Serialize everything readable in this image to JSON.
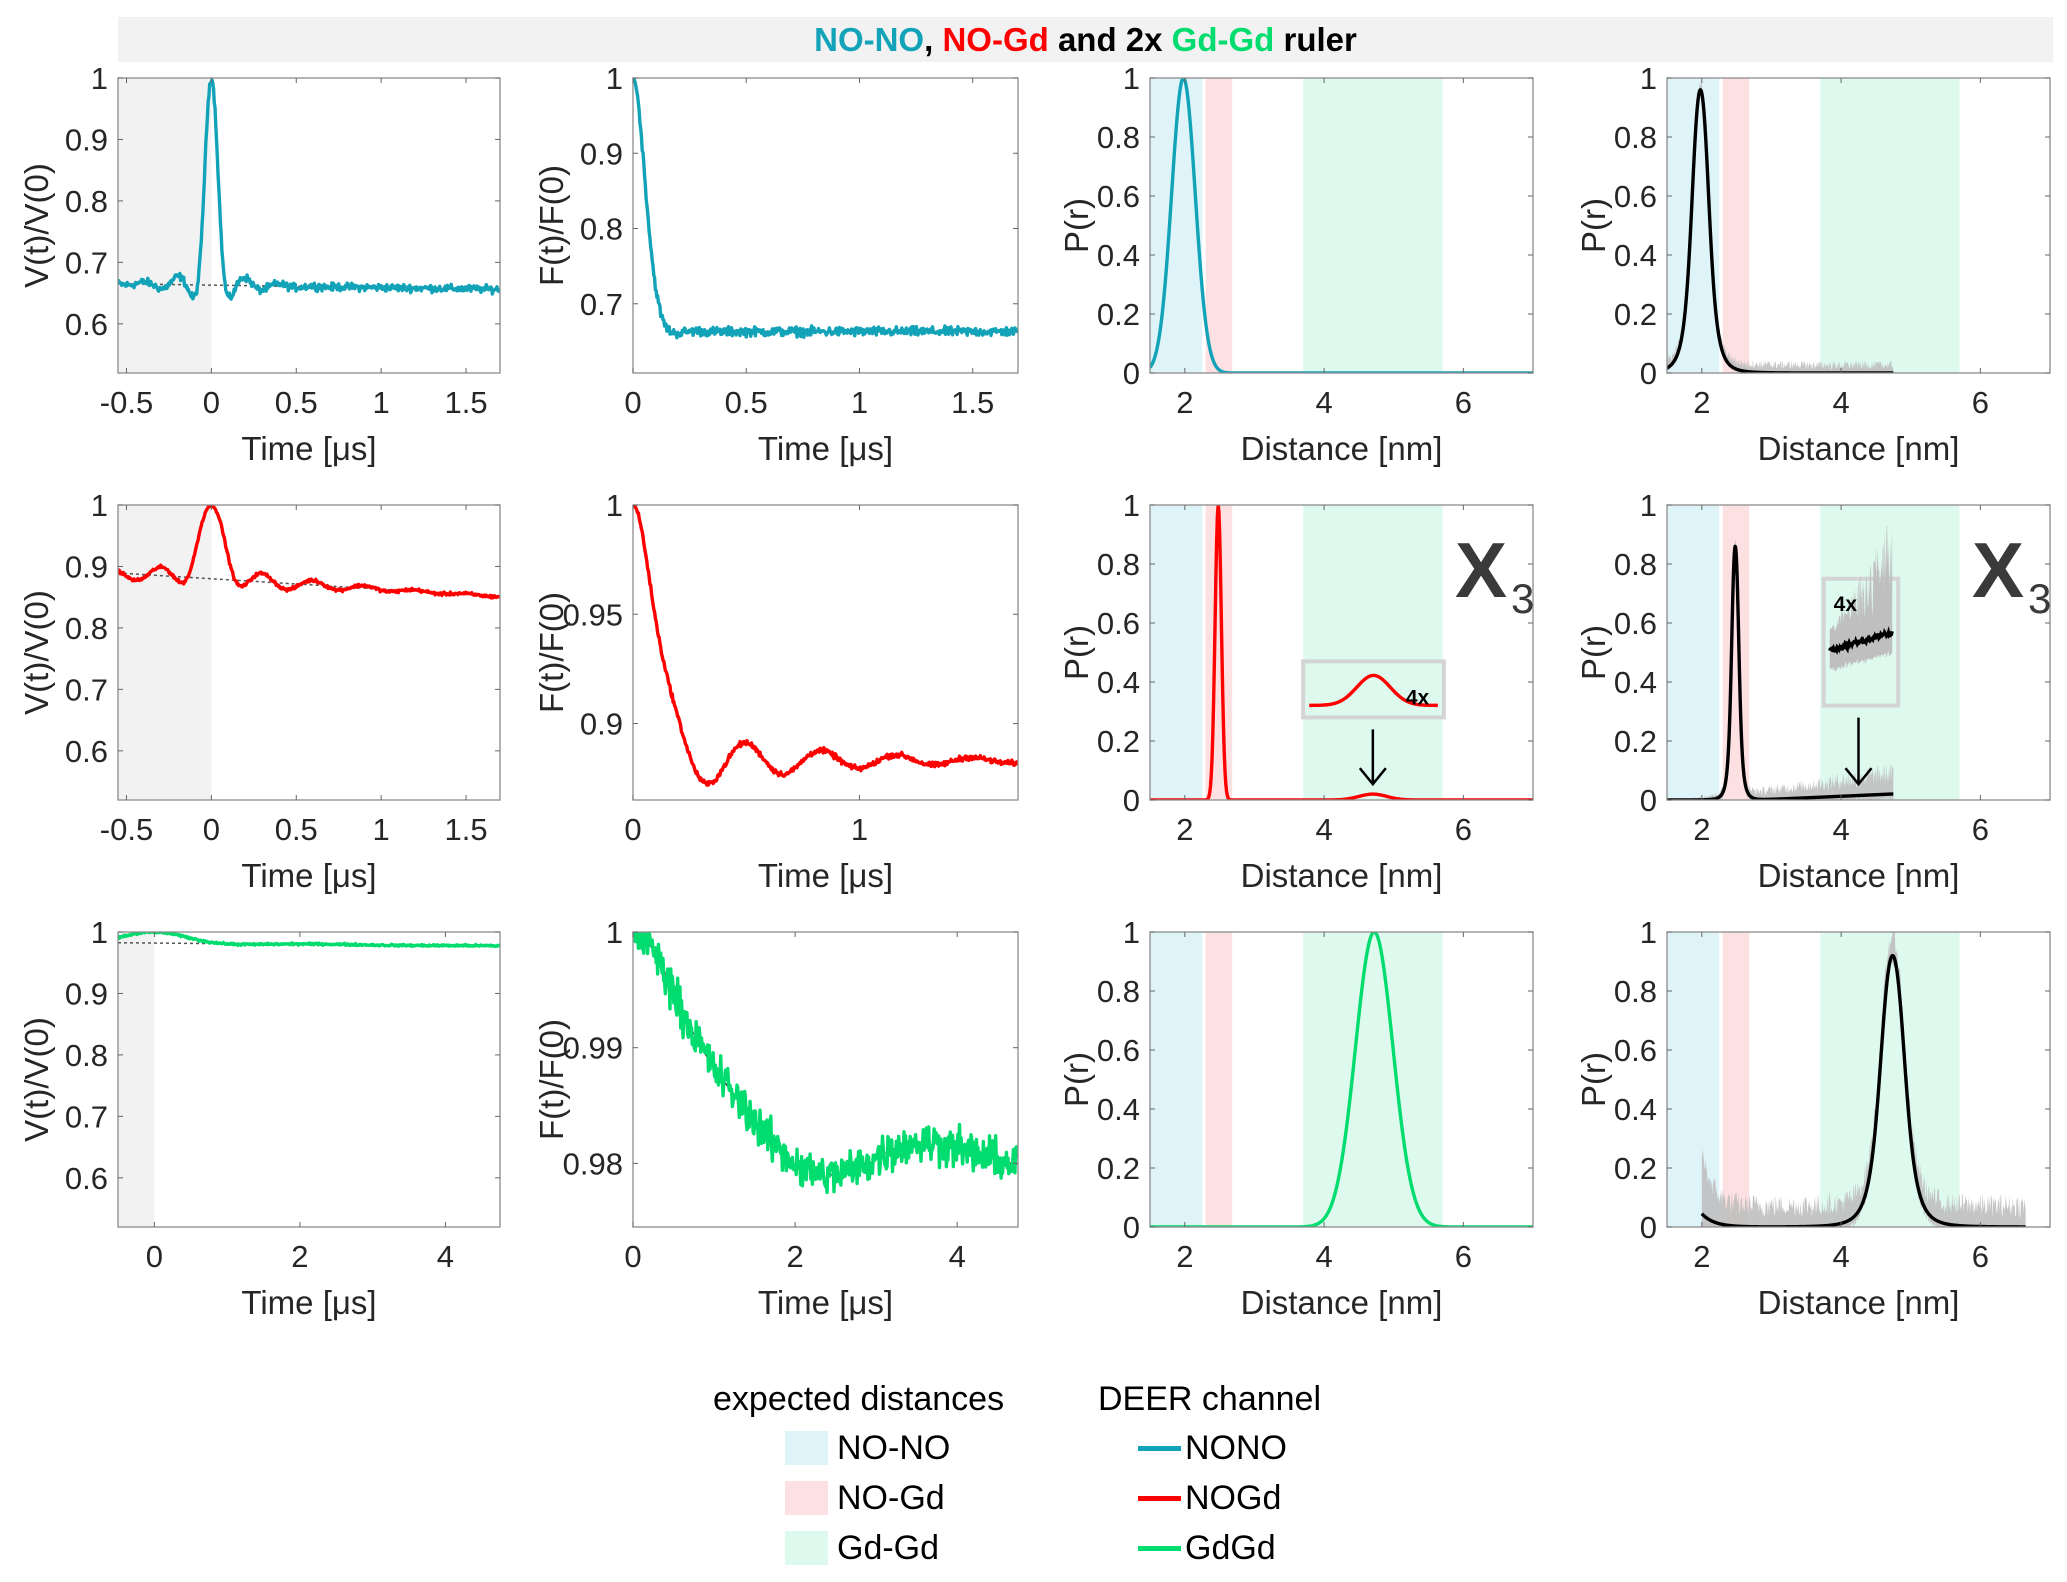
{
  "title": {
    "parts": [
      {
        "text": "NO-NO",
        "color": "#12a3b8"
      },
      {
        "text": ", ",
        "color": "#000000"
      },
      {
        "text": "NO-Gd",
        "color": "#ff0000"
      },
      {
        "text": " and 2x ",
        "color": "#000000"
      },
      {
        "text": "Gd-Gd",
        "color": "#00dc6e"
      },
      {
        "text": " ruler",
        "color": "#000000"
      }
    ]
  },
  "colors": {
    "NONO": "#12a3b8",
    "NOGd": "#ff0000",
    "GdGd": "#00dc6e",
    "band_NONO": "#def4f8",
    "band_NOGd": "#fde0e1",
    "band_GdGd": "#defaee",
    "uncertainty": "#bfbfbf"
  },
  "legend": {
    "expected_title": "expected distances",
    "expected_items": [
      {
        "label": "NO-NO",
        "color_key": "band_NONO"
      },
      {
        "label": "NO-Gd",
        "color_key": "band_NOGd"
      },
      {
        "label": "Gd-Gd",
        "color_key": "band_GdGd"
      }
    ],
    "channel_title": "DEER channel",
    "channel_items": [
      {
        "label": "NONO",
        "color_key": "NONO"
      },
      {
        "label": "NOGd",
        "color_key": "NOGd"
      },
      {
        "label": "GdGd",
        "color_key": "GdGd"
      }
    ]
  },
  "chart_data": [
    {
      "id": "r1c1",
      "type": "line",
      "row": 0,
      "col": 0,
      "xlabel": "Time [μs]",
      "ylabel": "V(t)/V(0)",
      "xlim": [
        -0.55,
        1.7
      ],
      "ylim": [
        0.52,
        1.0
      ],
      "xticks": [
        -0.5,
        0,
        0.5,
        1,
        1.5
      ],
      "xtick_labels": [
        "-0.5",
        "0",
        "0.5",
        "1",
        "1.5"
      ],
      "yticks": [
        0.6,
        0.7,
        0.8,
        0.9,
        1
      ],
      "ytick_labels": [
        "0.6",
        "0.7",
        "0.8",
        "0.9",
        "1"
      ],
      "shade_x": [
        -0.55,
        0
      ],
      "series": [
        {
          "name": "NONO",
          "color_key": "NONO",
          "kind": "vtrace",
          "baseline": 0.663,
          "baseline_slope": -0.004,
          "peak": 1.0,
          "peak_width": 0.035,
          "osc_amp": 0.05,
          "osc_period": 0.2,
          "osc_decay": 0.15,
          "noise": 0.006
        }
      ],
      "background": {
        "start": 0.663,
        "slope": -0.004
      }
    },
    {
      "id": "r1c2",
      "type": "line",
      "row": 0,
      "col": 1,
      "xlabel": "Time [μs]",
      "ylabel": "F(t)/F(0)",
      "xlim": [
        0,
        1.7
      ],
      "ylim": [
        0.608,
        1.0
      ],
      "xticks": [
        0,
        0.5,
        1,
        1.5
      ],
      "xtick_labels": [
        "0",
        "0.5",
        "1",
        "1.5"
      ],
      "yticks": [
        0.7,
        0.8,
        0.9,
        1
      ],
      "ytick_labels": [
        "0.7",
        "0.8",
        "0.9",
        "1"
      ],
      "series": [
        {
          "name": "NONO",
          "color_key": "NONO",
          "kind": "ftrace",
          "plateau": 0.663,
          "depth": 0.337,
          "freq_period": 0.175,
          "decay": 0.08,
          "noise": 0.006
        }
      ]
    },
    {
      "id": "r1c3",
      "type": "line",
      "row": 0,
      "col": 2,
      "xlabel": "Distance [nm]",
      "ylabel": "P(r)",
      "xlim": [
        1.5,
        7.0
      ],
      "ylim": [
        0,
        1
      ],
      "xticks": [
        2,
        4,
        6
      ],
      "xtick_labels": [
        "2",
        "4",
        "6"
      ],
      "yticks": [
        0,
        0.2,
        0.4,
        0.6,
        0.8,
        1
      ],
      "ytick_labels": [
        "0",
        "0.2",
        "0.4",
        "0.6",
        "0.8",
        "1"
      ],
      "bands": [
        {
          "range": [
            1.5,
            2.25
          ],
          "color_key": "band_NONO"
        },
        {
          "range": [
            2.3,
            2.68
          ],
          "color_key": "band_NOGd"
        },
        {
          "range": [
            3.7,
            5.7
          ],
          "color_key": "band_GdGd"
        }
      ],
      "series": [
        {
          "name": "NONO",
          "color_key": "NONO",
          "kind": "gauss",
          "peaks": [
            {
              "mu": 1.98,
              "sigma": 0.17,
              "amp": 1.0
            }
          ],
          "xrange": [
            1.5,
            7.0
          ]
        }
      ]
    },
    {
      "id": "r1c4",
      "type": "line",
      "row": 0,
      "col": 3,
      "xlabel": "Distance [nm]",
      "ylabel": "P(r)",
      "xlim": [
        1.5,
        7.0
      ],
      "ylim": [
        0,
        1
      ],
      "xticks": [
        2,
        4,
        6
      ],
      "xtick_labels": [
        "2",
        "4",
        "6"
      ],
      "yticks": [
        0,
        0.2,
        0.4,
        0.6,
        0.8,
        1
      ],
      "ytick_labels": [
        "0",
        "0.2",
        "0.4",
        "0.6",
        "0.8",
        "1"
      ],
      "bands": [
        {
          "range": [
            1.5,
            2.25
          ],
          "color_key": "band_NONO"
        },
        {
          "range": [
            2.3,
            2.68
          ],
          "color_key": "band_NOGd"
        },
        {
          "range": [
            3.7,
            5.7
          ],
          "color_key": "band_GdGd"
        }
      ],
      "series": [
        {
          "name": "fit",
          "color": "#000000",
          "kind": "lorentzish",
          "peaks": [
            {
              "mu": 1.98,
              "sigma": 0.14,
              "amp": 0.96
            }
          ],
          "xrange": [
            1.42,
            4.75
          ],
          "uncertainty": 0.03
        }
      ]
    },
    {
      "id": "r2c1",
      "type": "line",
      "row": 1,
      "col": 0,
      "xlabel": "Time [μs]",
      "ylabel": "V(t)/V(0)",
      "xlim": [
        -0.55,
        1.7
      ],
      "ylim": [
        0.52,
        1.0
      ],
      "xticks": [
        -0.5,
        0,
        0.5,
        1,
        1.5
      ],
      "xtick_labels": [
        "-0.5",
        "0",
        "0.5",
        "1",
        "1.5"
      ],
      "yticks": [
        0.6,
        0.7,
        0.8,
        0.9,
        1
      ],
      "ytick_labels": [
        "0.6",
        "0.7",
        "0.8",
        "0.9",
        "1"
      ],
      "shade_x": [
        -0.55,
        0
      ],
      "series": [
        {
          "name": "NOGd",
          "color_key": "NOGd",
          "kind": "vtrace",
          "baseline": 0.88,
          "baseline_slope": -0.017,
          "peak": 1.0,
          "peak_width": 0.07,
          "osc_amp": 0.025,
          "osc_period": 0.3,
          "osc_decay": 0.5,
          "noise": 0.0025
        }
      ],
      "background": {
        "start": 0.88,
        "slope": -0.017
      }
    },
    {
      "id": "r2c2",
      "type": "line",
      "row": 1,
      "col": 1,
      "xlabel": "Time [μs]",
      "ylabel": "F(t)/F(0)",
      "xlim": [
        0,
        1.7
      ],
      "ylim": [
        0.865,
        1.0
      ],
      "xticks": [
        0,
        1
      ],
      "xtick_labels": [
        "0",
        "1"
      ],
      "yticks": [
        0.9,
        0.95,
        1
      ],
      "ytick_labels": [
        "0.9",
        "0.95",
        "1"
      ],
      "series": [
        {
          "name": "NOGd",
          "color_key": "NOGd",
          "kind": "ftrace",
          "plateau": 0.883,
          "depth": 0.117,
          "freq_period": 0.3,
          "decay": 0.6,
          "noise": 0.0012,
          "osc_scale": 0.16
        }
      ]
    },
    {
      "id": "r2c3",
      "type": "line",
      "row": 1,
      "col": 2,
      "xlabel": "Distance [nm]",
      "ylabel": "P(r)",
      "xlim": [
        1.5,
        7.0
      ],
      "ylim": [
        0,
        1
      ],
      "xticks": [
        2,
        4,
        6
      ],
      "xtick_labels": [
        "2",
        "4",
        "6"
      ],
      "yticks": [
        0,
        0.2,
        0.4,
        0.6,
        0.8,
        1
      ],
      "ytick_labels": [
        "0",
        "0.2",
        "0.4",
        "0.6",
        "0.8",
        "1"
      ],
      "bands": [
        {
          "range": [
            1.5,
            2.25
          ],
          "color_key": "band_NONO"
        },
        {
          "range": [
            2.3,
            2.68
          ],
          "color_key": "band_NOGd"
        },
        {
          "range": [
            3.7,
            5.7
          ],
          "color_key": "band_GdGd"
        }
      ],
      "series": [
        {
          "name": "NOGd",
          "color_key": "NOGd",
          "kind": "gauss",
          "peaks": [
            {
              "mu": 2.48,
              "sigma": 0.045,
              "amp": 1.0
            },
            {
              "mu": 4.7,
              "sigma": 0.2,
              "amp": 0.02
            }
          ],
          "xrange": [
            1.5,
            7.0
          ]
        }
      ],
      "annotation": {
        "label": "X",
        "subscript": "3",
        "inset_label": "4x",
        "inset_kind": "gauss",
        "arrow_x": 4.7
      }
    },
    {
      "id": "r2c4",
      "type": "line",
      "row": 1,
      "col": 3,
      "xlabel": "Distance [nm]",
      "ylabel": "P(r)",
      "xlim": [
        1.5,
        7.0
      ],
      "ylim": [
        0,
        1
      ],
      "xticks": [
        2,
        4,
        6
      ],
      "xtick_labels": [
        "2",
        "4",
        "6"
      ],
      "yticks": [
        0,
        0.2,
        0.4,
        0.6,
        0.8,
        1
      ],
      "ytick_labels": [
        "0",
        "0.2",
        "0.4",
        "0.6",
        "0.8",
        "1"
      ],
      "bands": [
        {
          "range": [
            1.5,
            2.25
          ],
          "color_key": "band_NONO"
        },
        {
          "range": [
            2.3,
            2.68
          ],
          "color_key": "band_NOGd"
        },
        {
          "range": [
            3.7,
            5.7
          ],
          "color_key": "band_GdGd"
        }
      ],
      "series": [
        {
          "name": "fit",
          "color": "#000000",
          "kind": "lorentzish",
          "peaks": [
            {
              "mu": 2.48,
              "sigma": 0.06,
              "amp": 0.86
            }
          ],
          "xrange": [
            1.42,
            4.75
          ],
          "tail": 0.02,
          "uncertainty": 0.06
        }
      ],
      "annotation": {
        "label": "X",
        "subscript": "3",
        "inset_label": "4x",
        "inset_kind": "noisy",
        "arrow_x": 4.25
      }
    },
    {
      "id": "r3c1",
      "type": "line",
      "row": 2,
      "col": 0,
      "xlabel": "Time [μs]",
      "ylabel": "V(t)/V(0)",
      "xlim": [
        -0.5,
        4.75
      ],
      "ylim": [
        0.52,
        1.0
      ],
      "xticks": [
        0,
        2,
        4
      ],
      "xtick_labels": [
        "0",
        "2",
        "4"
      ],
      "yticks": [
        0.6,
        0.7,
        0.8,
        0.9,
        1
      ],
      "ytick_labels": [
        "0.6",
        "0.7",
        "0.8",
        "0.9",
        "1"
      ],
      "shade_x": [
        -0.5,
        0
      ],
      "series": [
        {
          "name": "GdGd",
          "color_key": "GdGd",
          "kind": "vtrace",
          "baseline": 0.982,
          "baseline_slope": -0.001,
          "peak": 1.0,
          "peak_width": 0.4,
          "osc_amp": 0.002,
          "osc_period": 2.3,
          "osc_decay": 2.0,
          "noise": 0.0015
        }
      ],
      "background": {
        "start": 0.982,
        "slope": -0.001
      }
    },
    {
      "id": "r3c2",
      "type": "line",
      "row": 2,
      "col": 1,
      "xlabel": "Time [μs]",
      "ylabel": "F(t)/F(0)",
      "xlim": [
        0,
        4.75
      ],
      "ylim": [
        0.9745,
        1.0
      ],
      "xticks": [
        0,
        2,
        4
      ],
      "xtick_labels": [
        "0",
        "2",
        "4"
      ],
      "yticks": [
        0.98,
        0.99,
        1
      ],
      "ytick_labels": [
        "0.98",
        "0.99",
        "1"
      ],
      "series": [
        {
          "name": "GdGd",
          "color_key": "GdGd",
          "kind": "ftrace",
          "plateau": 0.9807,
          "depth": 0.0193,
          "freq_period": 2.2,
          "decay": 3.0,
          "noise": 0.0017,
          "osc_scale": 0.2
        }
      ]
    },
    {
      "id": "r3c3",
      "type": "line",
      "row": 2,
      "col": 2,
      "xlabel": "Distance [nm]",
      "ylabel": "P(r)",
      "xlim": [
        1.5,
        7.0
      ],
      "ylim": [
        0,
        1
      ],
      "xticks": [
        2,
        4,
        6
      ],
      "xtick_labels": [
        "2",
        "4",
        "6"
      ],
      "yticks": [
        0,
        0.2,
        0.4,
        0.6,
        0.8,
        1
      ],
      "ytick_labels": [
        "0",
        "0.2",
        "0.4",
        "0.6",
        "0.8",
        "1"
      ],
      "bands": [
        {
          "range": [
            1.5,
            2.25
          ],
          "color_key": "band_NONO"
        },
        {
          "range": [
            2.3,
            2.68
          ],
          "color_key": "band_NOGd"
        },
        {
          "range": [
            3.7,
            5.7
          ],
          "color_key": "band_GdGd"
        }
      ],
      "series": [
        {
          "name": "GdGd",
          "color_key": "GdGd",
          "kind": "gauss",
          "peaks": [
            {
              "mu": 4.72,
              "sigma": 0.27,
              "amp": 1.0
            }
          ],
          "xrange": [
            1.5,
            7.0
          ]
        }
      ]
    },
    {
      "id": "r3c4",
      "type": "line",
      "row": 2,
      "col": 3,
      "xlabel": "Distance [nm]",
      "ylabel": "P(r)",
      "xlim": [
        1.5,
        7.0
      ],
      "ylim": [
        0,
        1
      ],
      "xticks": [
        2,
        4,
        6
      ],
      "xtick_labels": [
        "2",
        "4",
        "6"
      ],
      "yticks": [
        0,
        0.2,
        0.4,
        0.6,
        0.8,
        1
      ],
      "ytick_labels": [
        "0",
        "0.2",
        "0.4",
        "0.6",
        "0.8",
        "1"
      ],
      "bands": [
        {
          "range": [
            1.5,
            2.25
          ],
          "color_key": "band_NONO"
        },
        {
          "range": [
            2.3,
            2.68
          ],
          "color_key": "band_NOGd"
        },
        {
          "range": [
            3.7,
            5.7
          ],
          "color_key": "band_GdGd"
        }
      ],
      "series": [
        {
          "name": "fit",
          "color": "#000000",
          "kind": "lorentzish",
          "peaks": [
            {
              "mu": 4.74,
              "sigma": 0.2,
              "amp": 0.92
            }
          ],
          "xrange": [
            2.0,
            6.65
          ],
          "head": 0.045,
          "uncertainty": 0.08
        }
      ]
    }
  ]
}
